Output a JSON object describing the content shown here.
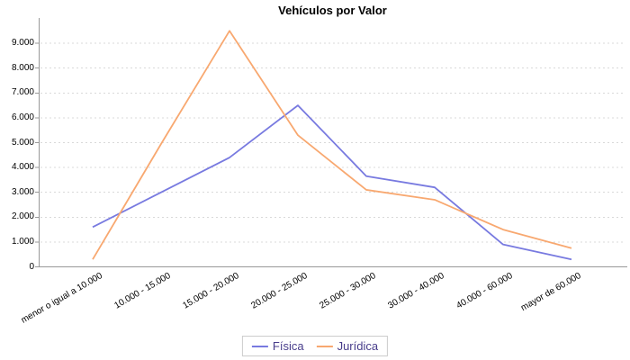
{
  "chart_data": {
    "type": "line",
    "title": "Vehículos por Valor",
    "categories": [
      "menor o igual a 10.000",
      "10.000 - 15.000",
      "15.000 - 20.000",
      "20.000 - 25.000",
      "25.000 - 30.000",
      "30.000 - 40.000",
      "40.000 - 60.000",
      "mayor de 60.000"
    ],
    "series": [
      {
        "name": "Física",
        "color": "#787ae0",
        "values": [
          1600,
          3000,
          4400,
          6500,
          3650,
          3200,
          900,
          300
        ]
      },
      {
        "name": "Jurídica",
        "color": "#f8a870",
        "values": [
          300,
          4950,
          9500,
          5300,
          3100,
          2700,
          1500,
          750
        ]
      }
    ],
    "y_axis": {
      "tick_values": [
        0,
        1000,
        2000,
        3000,
        4000,
        5000,
        6000,
        7000,
        8000,
        9000
      ],
      "tick_labels": [
        "0",
        "1.000",
        "2.000",
        "3.000",
        "4.000",
        "5.000",
        "6.000",
        "7.000",
        "8.000",
        "9.000"
      ]
    },
    "ylim": [
      0,
      10000
    ],
    "grid": "horizontal-dashed",
    "legend_position": "bottom",
    "colors": {
      "legend_text": "#483d8b",
      "axis": "#999999",
      "gridline": "#d9d9d9",
      "tick_label": "#000000"
    }
  }
}
